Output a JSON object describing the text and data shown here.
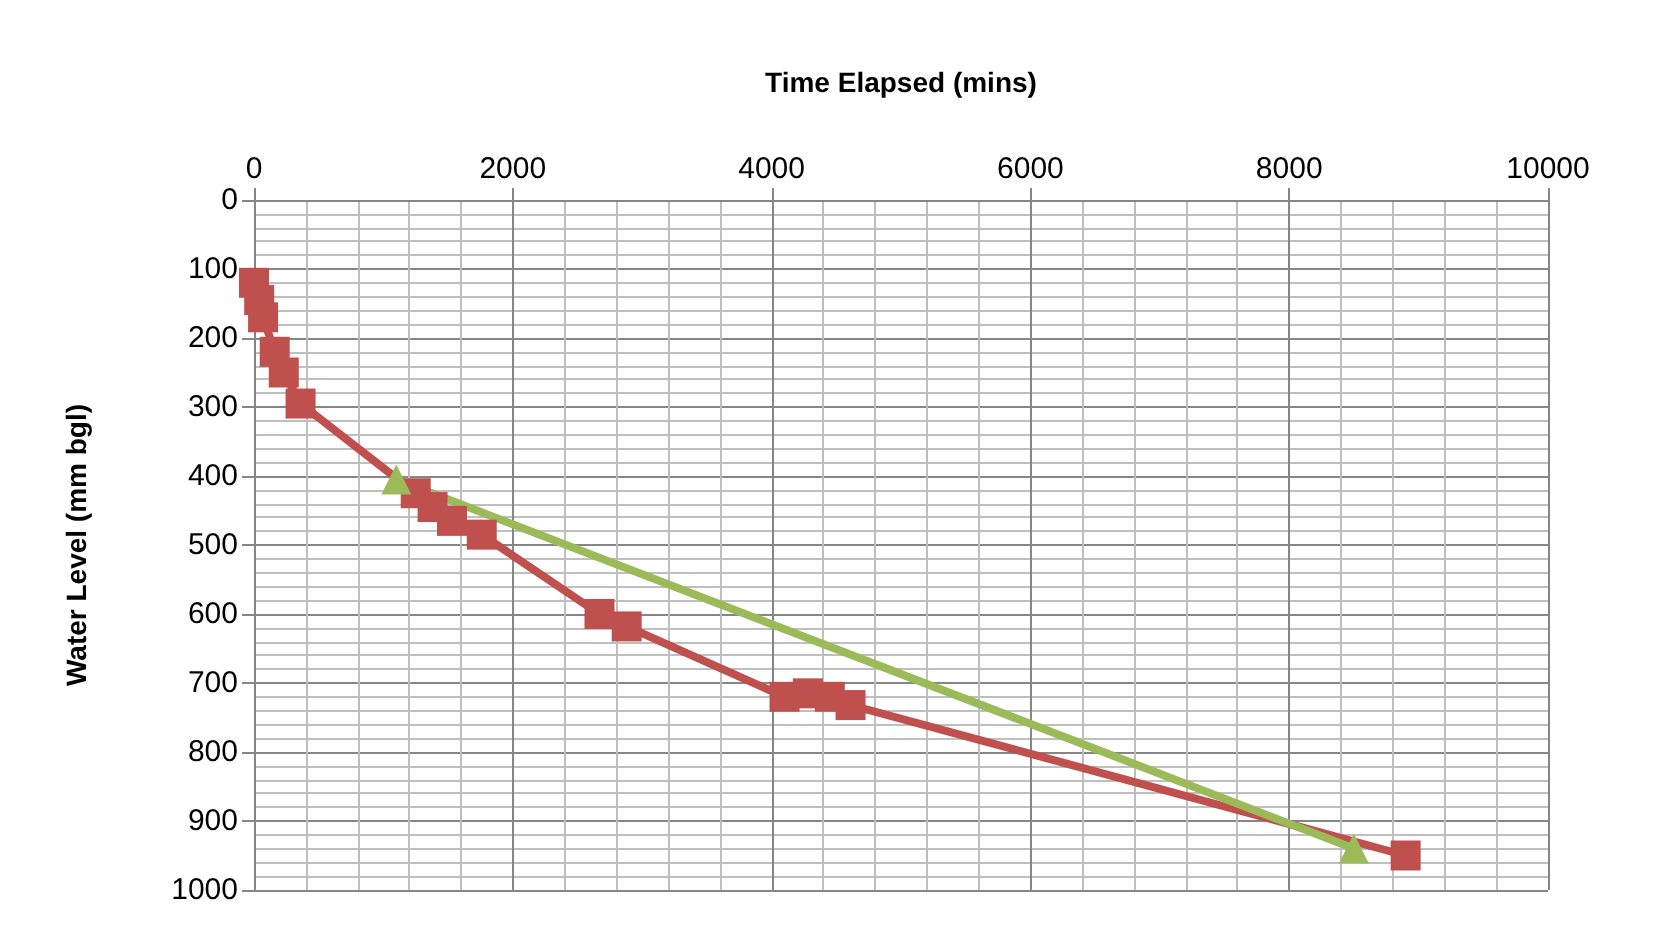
{
  "chart_data": {
    "type": "line",
    "xlabel": "Time Elapsed (mins)",
    "ylabel": "Water Level (mm bgl)",
    "xlim": [
      0,
      10000
    ],
    "xticks": [
      0,
      2000,
      4000,
      6000,
      8000,
      10000
    ],
    "ylim": [
      1000,
      0
    ],
    "yticks": [
      0,
      100,
      200,
      300,
      400,
      500,
      600,
      700,
      800,
      900,
      1000
    ],
    "grid": true,
    "series": [
      {
        "color": "#c0504d",
        "marker": "square",
        "x": [
          0,
          40,
          70,
          160,
          230,
          360,
          1250,
          1380,
          1530,
          1760,
          2670,
          2880,
          4100,
          4280,
          4450,
          4610,
          8900
        ],
        "values": [
          120,
          145,
          170,
          220,
          250,
          295,
          425,
          445,
          465,
          485,
          600,
          618,
          720,
          715,
          720,
          732,
          950
        ]
      },
      {
        "color": "#9bbb59",
        "marker": "triangle",
        "x": [
          1100,
          8500
        ],
        "values": [
          405,
          940
        ]
      }
    ]
  }
}
